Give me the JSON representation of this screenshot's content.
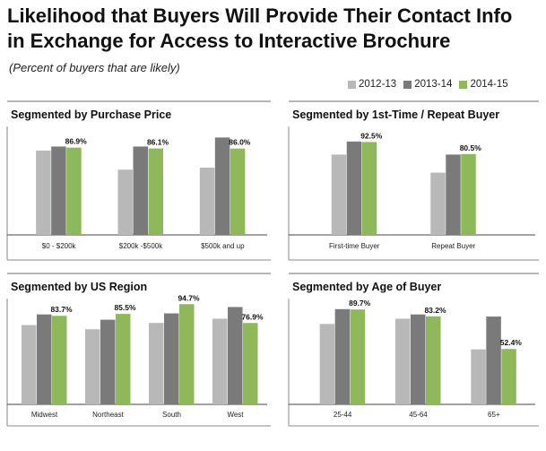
{
  "header": {
    "title_line1": "Likelihood that Buyers Will Provide Their Contact Info",
    "title_line2": "in Exchange for Access to Interactive Brochure",
    "subtitle": "(Percent of buyers that are likely)"
  },
  "legend": [
    {
      "label": "2012-13",
      "color": "#b8b8b8"
    },
    {
      "label": "2013-14",
      "color": "#7a7a7a"
    },
    {
      "label": "2014-15",
      "color": "#8fb85a"
    }
  ],
  "chart_data": [
    {
      "type": "bar",
      "title": "Segmented by Purchase Price",
      "categories": [
        "$0 - $200k",
        "$200k -$500k",
        "$500k and up"
      ],
      "series": [
        {
          "name": "2012-13",
          "values": [
            84.0,
            65.0,
            67.0
          ]
        },
        {
          "name": "2013-14",
          "values": [
            88.0,
            88.0,
            97.0
          ]
        },
        {
          "name": "2014-15",
          "values": [
            86.9,
            86.1,
            86.0
          ]
        }
      ],
      "labels": [
        "86.9%",
        "86.1%",
        "86.0%"
      ],
      "ylim": [
        0,
        100
      ]
    },
    {
      "type": "bar",
      "title": "Segmented by 1st-Time / Repeat Buyer",
      "categories": [
        "First-time Buyer",
        "Repeat Buyer"
      ],
      "series": [
        {
          "name": "2012-13",
          "values": [
            80.0,
            62.0
          ]
        },
        {
          "name": "2013-14",
          "values": [
            93.0,
            80.0
          ]
        },
        {
          "name": "2014-15",
          "values": [
            92.5,
            80.5
          ]
        }
      ],
      "labels": [
        "92.5%",
        "80.5%"
      ],
      "ylim": [
        0,
        100
      ]
    },
    {
      "type": "bar",
      "title": "Segmented by US Region",
      "categories": [
        "Midwest",
        "Northeast",
        "South",
        "West"
      ],
      "series": [
        {
          "name": "2012-13",
          "values": [
            75.0,
            71.0,
            77.0,
            81.0
          ]
        },
        {
          "name": "2013-14",
          "values": [
            85.0,
            80.0,
            86.0,
            92.0
          ]
        },
        {
          "name": "2014-15",
          "values": [
            83.7,
            85.5,
            94.7,
            76.9
          ]
        }
      ],
      "labels": [
        "83.7%",
        "85.5%",
        "94.7%",
        "76.9%"
      ],
      "ylim": [
        0,
        100
      ]
    },
    {
      "type": "bar",
      "title": "Segmented by Age of Buyer",
      "categories": [
        "25-44",
        "45-64",
        "65+"
      ],
      "series": [
        {
          "name": "2012-13",
          "values": [
            76.0,
            81.0,
            52.0
          ]
        },
        {
          "name": "2013-14",
          "values": [
            90.0,
            85.0,
            83.0
          ]
        },
        {
          "name": "2014-15",
          "values": [
            89.7,
            83.2,
            52.4
          ]
        }
      ],
      "labels": [
        "89.7%",
        "83.2%",
        "52.4%"
      ],
      "ylim": [
        0,
        100
      ]
    }
  ]
}
